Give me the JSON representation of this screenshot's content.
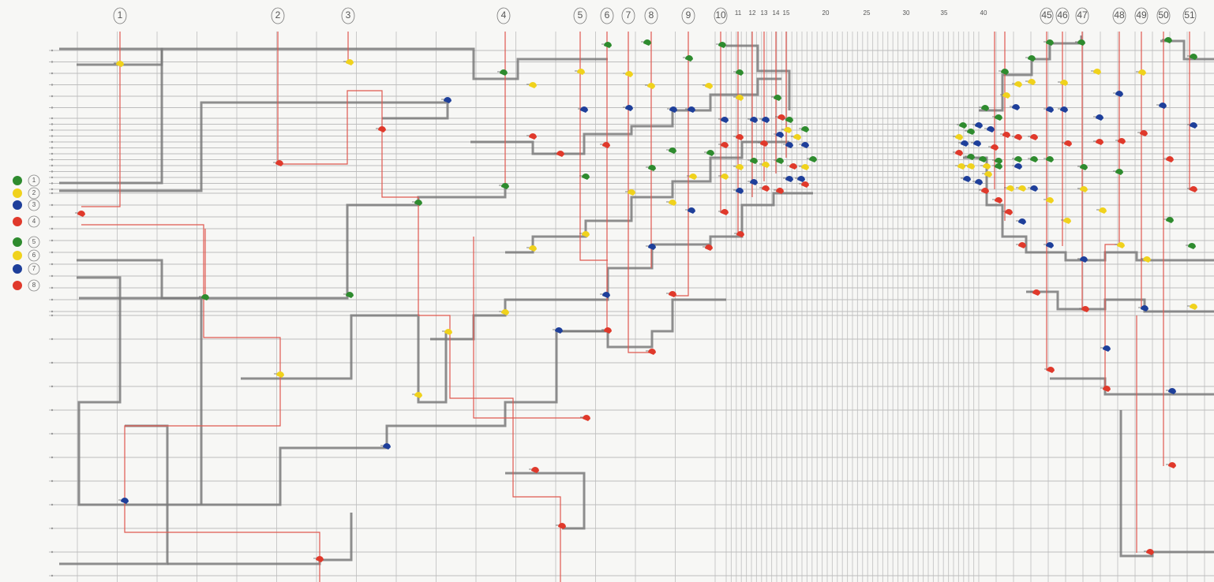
{
  "header": {
    "track_labels": [
      "1",
      "2",
      "3",
      "4",
      "5",
      "6",
      "7",
      "8",
      "9",
      "10",
      "11",
      "12",
      "13",
      "14",
      "15",
      "20",
      "25",
      "30",
      "35",
      "40",
      "45",
      "46",
      "47",
      "48",
      "49",
      "50",
      "51"
    ]
  },
  "legend": {
    "items": [
      {
        "label": "1"
      },
      {
        "label": "2"
      },
      {
        "label": "3"
      },
      {
        "label": "4"
      },
      {
        "label": "5"
      },
      {
        "label": "6"
      },
      {
        "label": "7"
      },
      {
        "label": "8"
      }
    ]
  }
}
